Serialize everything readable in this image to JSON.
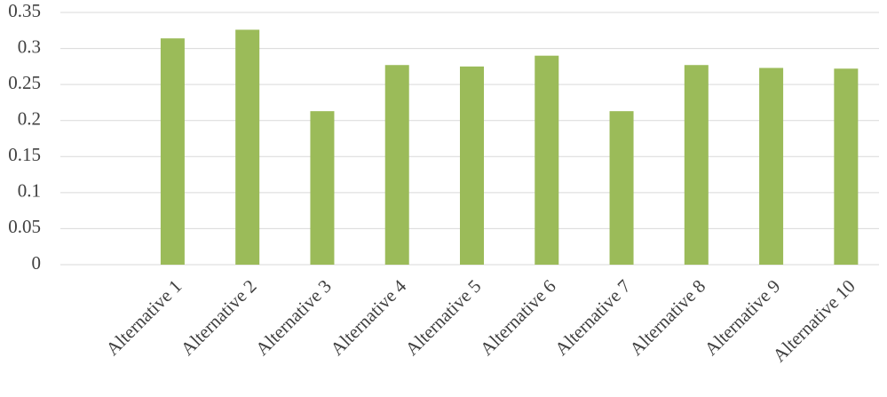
{
  "chart_data": {
    "type": "bar",
    "categories": [
      null,
      "Alternative 1",
      "Alternative 2",
      "Alternative 3",
      "Alternative 4",
      "Alternative 5",
      "Alternative 6",
      "Alternative 7",
      "Alternative 8",
      "Alternative 9",
      "Alternative 10"
    ],
    "values": [
      null,
      0.314,
      0.326,
      0.213,
      0.277,
      0.275,
      0.29,
      0.213,
      0.277,
      0.273,
      0.272
    ],
    "color": "#9bbb59",
    "ylim": [
      0,
      0.35
    ],
    "yticks": [
      0,
      0.05,
      0.1,
      0.15,
      0.2,
      0.25,
      0.3,
      0.35
    ],
    "grid": true
  }
}
